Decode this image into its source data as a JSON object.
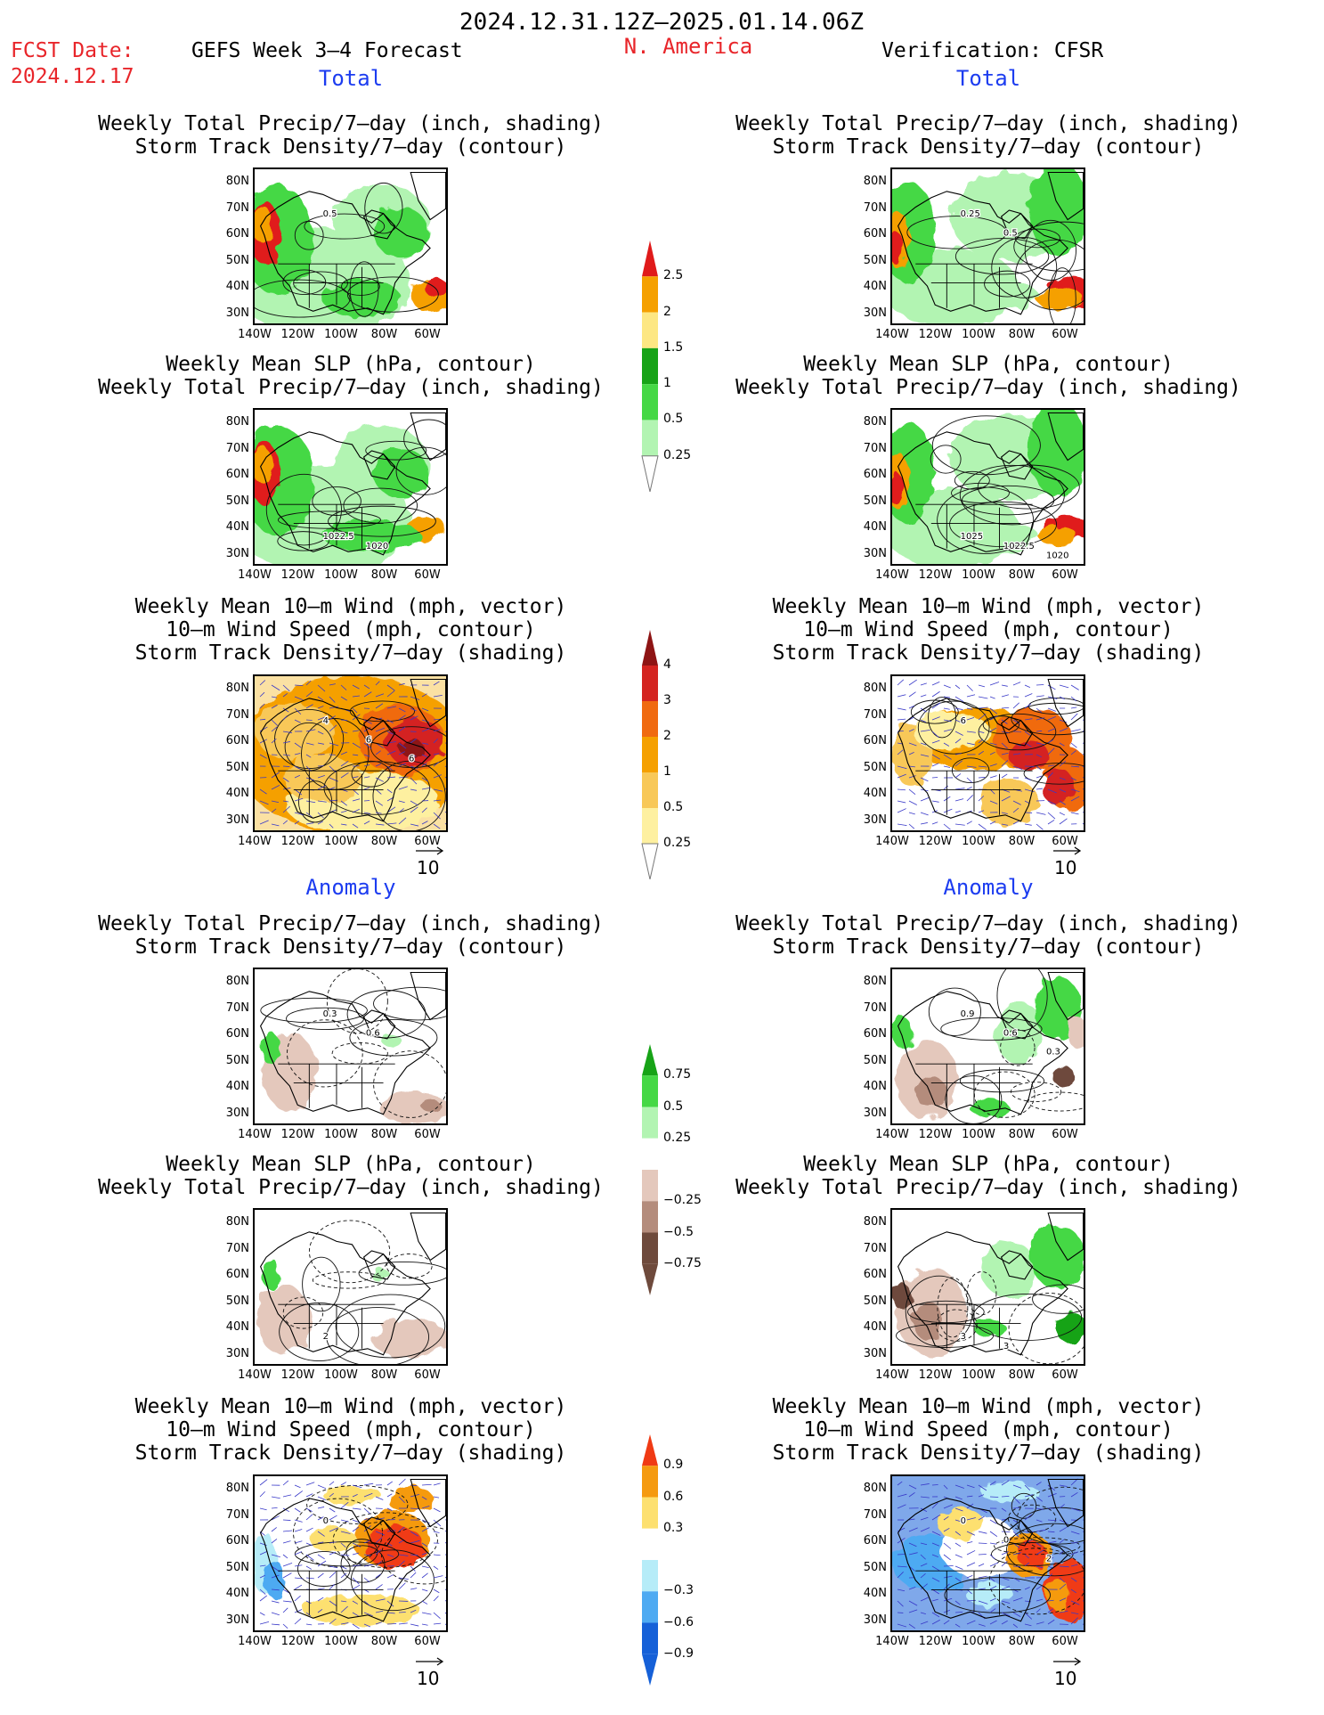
{
  "header": {
    "period": "2024.12.31.12Z–2025.01.14.06Z",
    "fcst_label": "FCST Date:",
    "fcst_date": "2024.12.17",
    "left_title": "GEFS Week 3–4 Forecast",
    "region": "N. America",
    "right_title": "Verification: CFSR",
    "total_label": "Total",
    "anomaly_label": "Anomaly"
  },
  "panel_titles": {
    "precip_track": [
      "Weekly Total Precip/7–day (inch, shading)",
      "Storm Track Density/7–day (contour)"
    ],
    "slp_precip": [
      "Weekly Mean SLP (hPa, contour)",
      "Weekly Total Precip/7–day (inch, shading)"
    ],
    "wind_track": [
      "Weekly Mean 10–m Wind (mph, vector)",
      "10–m Wind Speed (mph, contour)",
      "Storm Track Density/7–day (shading)"
    ]
  },
  "axes": {
    "lat_ticks": [
      "80N",
      "70N",
      "60N",
      "50N",
      "40N",
      "30N"
    ],
    "lon_ticks": [
      "140W",
      "120W",
      "100W",
      "80W",
      "60W"
    ]
  },
  "vector_ref": "10",
  "contour_labels": {
    "fc_total_1": [
      "0.5"
    ],
    "vf_total_1": [
      "0.25",
      "0.5"
    ],
    "fc_total_2": [
      "1022.5",
      "1020"
    ],
    "vf_total_2": [
      "1025",
      "1022.5",
      "1020"
    ],
    "fc_total_3": [
      "4",
      "6",
      "6"
    ],
    "vf_total_3": [
      "6"
    ],
    "fc_anom_1": [
      "0.3",
      "0.6"
    ],
    "vf_anom_1": [
      "0.9",
      "0.6",
      "0.3"
    ],
    "fc_anom_2": [
      "2"
    ],
    "vf_anom_2": [
      "3",
      "3"
    ],
    "fc_anom_3": [
      "0"
    ],
    "vf_anom_3": [
      "0",
      "0",
      "2"
    ]
  },
  "colorbars": {
    "precip_total": {
      "labels": [
        "2.5",
        "2",
        "1.5",
        "1",
        "0.5",
        "0.25"
      ],
      "colors": [
        "#e01a1a",
        "#f5a000",
        "#fde783",
        "#17a317",
        "#45d845",
        "#b2f4b2"
      ]
    },
    "track_total": {
      "labels": [
        "4",
        "3",
        "2",
        "1",
        "0.5",
        "0.25"
      ],
      "colors": [
        "#8e1414",
        "#d42420",
        "#f06a10",
        "#f5a000",
        "#f8c858",
        "#fef0a0"
      ]
    },
    "precip_anom": {
      "labels": [
        "0.75",
        "0.5",
        "0.25",
        "−0.25",
        "−0.5",
        "−0.75"
      ],
      "colors": [
        "#17a317",
        "#45d845",
        "#b2f4b2",
        "#ffffff",
        "#e4c8bc",
        "#b48c7c",
        "#6e4a3c"
      ]
    },
    "track_anom": {
      "labels": [
        "0.9",
        "0.6",
        "0.3",
        "−0.3",
        "−0.6",
        "−0.9"
      ],
      "colors": [
        "#f03a14",
        "#f59a10",
        "#fde070",
        "#ffffff",
        "#b6ecf8",
        "#4eaaf2",
        "#1560d8"
      ]
    }
  }
}
